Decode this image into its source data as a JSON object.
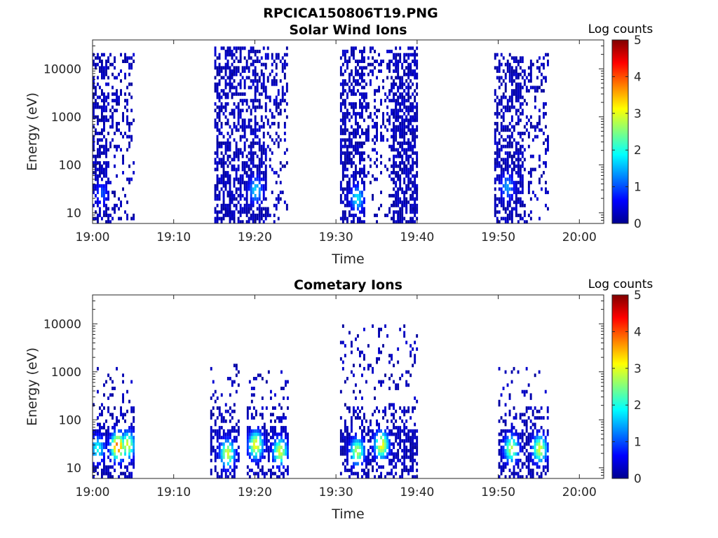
{
  "figure_title": "RPCICA150806T19.PNG",
  "colorbar_colors": [
    "#00008f",
    "#0000ff",
    "#0080ff",
    "#00ffff",
    "#80ff80",
    "#ffff00",
    "#ff8000",
    "#ff0000",
    "#800000"
  ],
  "chart_data": [
    {
      "type": "heatmap",
      "title": "Solar Wind Ions",
      "xlabel": "Time",
      "ylabel": "Energy (eV)",
      "x_ticks": [
        "19:00",
        "19:10",
        "19:20",
        "19:30",
        "19:40",
        "19:50",
        "20:00"
      ],
      "x_range": [
        "19:00",
        "20:03"
      ],
      "y_scale": "log",
      "y_ticks": [
        "10",
        "100",
        "1000",
        "10000"
      ],
      "y_range": [
        6,
        40000
      ],
      "colorbar": {
        "title": "Log counts",
        "ticks": [
          "0",
          "1",
          "2",
          "3",
          "4",
          "5"
        ],
        "range": [
          0,
          5
        ]
      },
      "grid": false,
      "bursts": [
        {
          "start_min": 0.0,
          "end_min": 5.0,
          "emax_eV": 20000,
          "core_end_min": 2.0,
          "hot_spots": [
            {
              "t_min": 1.0,
              "e_eV": 25,
              "level": 1.0
            }
          ]
        },
        {
          "start_min": 15.0,
          "end_min": 24.0,
          "emax_eV": 30000,
          "core_end_min": 21.5,
          "hot_spots": [
            {
              "t_min": 20.0,
              "e_eV": 30,
              "level": 1.7
            }
          ]
        },
        {
          "start_min": 30.5,
          "end_min": 40.0,
          "emax_eV": 30000,
          "core_end_min": 33.5,
          "hot_spots": [
            {
              "t_min": 32.5,
              "e_eV": 20,
              "level": 1.8
            }
          ]
        },
        {
          "start_min": 37.0,
          "end_min": 40.0,
          "emax_eV": 20000,
          "core_end_min": 40.0,
          "hot_spots": []
        },
        {
          "start_min": 49.5,
          "end_min": 56.0,
          "emax_eV": 20000,
          "core_end_min": 53.0,
          "hot_spots": [
            {
              "t_min": 51.0,
              "e_eV": 35,
              "level": 1.4
            }
          ]
        }
      ]
    },
    {
      "type": "heatmap",
      "title": "Cometary Ions",
      "xlabel": "Time",
      "ylabel": "Energy (eV)",
      "x_ticks": [
        "19:00",
        "19:10",
        "19:20",
        "19:30",
        "19:40",
        "19:50",
        "20:00"
      ],
      "x_range": [
        "19:00",
        "20:03"
      ],
      "y_scale": "log",
      "y_ticks": [
        "10",
        "100",
        "1000",
        "10000"
      ],
      "y_range": [
        6,
        40000
      ],
      "colorbar": {
        "title": "Log counts",
        "ticks": [
          "0",
          "1",
          "2",
          "3",
          "4",
          "5"
        ],
        "range": [
          0,
          5
        ]
      },
      "grid": false,
      "bursts": [
        {
          "start_min": 0.0,
          "end_min": 5.0,
          "emax_eV": 1200,
          "hot_spots": [
            {
              "t_min": 0.5,
              "e_eV": 25,
              "level": 2.0
            },
            {
              "t_min": 3.0,
              "e_eV": 28,
              "level": 4.0
            },
            {
              "t_min": 4.2,
              "e_eV": 30,
              "level": 3.0
            }
          ]
        },
        {
          "start_min": 14.5,
          "end_min": 18.0,
          "emax_eV": 1700,
          "hot_spots": [
            {
              "t_min": 16.5,
              "e_eV": 20,
              "level": 3.0
            }
          ]
        },
        {
          "start_min": 19.0,
          "end_min": 24.0,
          "emax_eV": 1000,
          "hot_spots": [
            {
              "t_min": 20.0,
              "e_eV": 30,
              "level": 3.2
            },
            {
              "t_min": 23.0,
              "e_eV": 22,
              "level": 3.0
            }
          ]
        },
        {
          "start_min": 30.5,
          "end_min": 40.0,
          "emax_eV": 9000,
          "hot_spots": [
            {
              "t_min": 32.5,
              "e_eV": 22,
              "level": 2.8
            },
            {
              "t_min": 35.5,
              "e_eV": 30,
              "level": 3.2
            }
          ]
        },
        {
          "start_min": 50.0,
          "end_min": 56.0,
          "emax_eV": 1200,
          "hot_spots": [
            {
              "t_min": 51.5,
              "e_eV": 25,
              "level": 2.8
            },
            {
              "t_min": 55.0,
              "e_eV": 25,
              "level": 3.0
            }
          ]
        }
      ]
    }
  ]
}
